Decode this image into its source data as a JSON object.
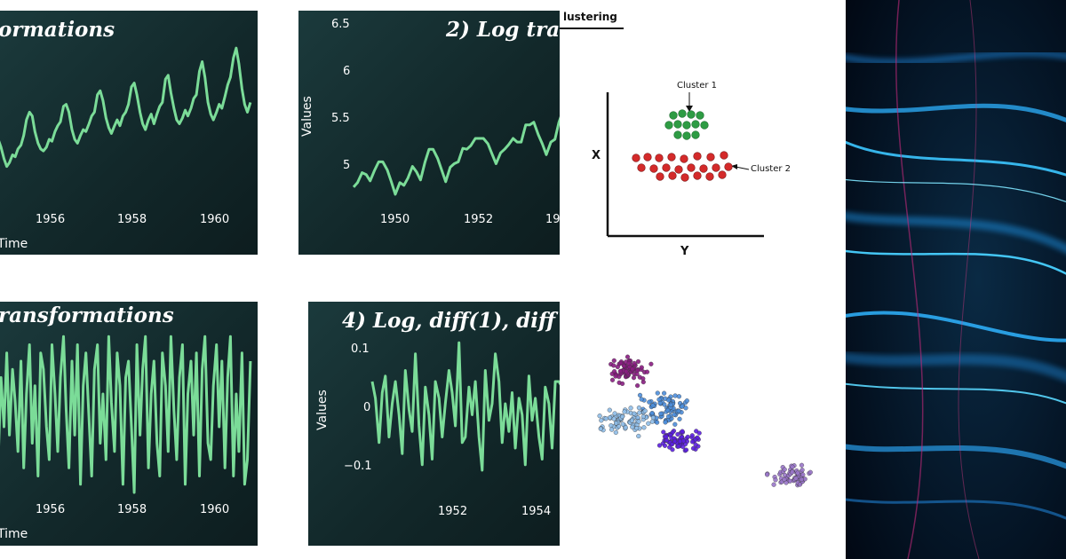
{
  "chart_data": [
    {
      "type": "line",
      "title": "ormations",
      "xlabel": "Time",
      "ylabel": "",
      "x_ticks": [
        "1956",
        "1958",
        "1960"
      ],
      "x_range": [
        1953.5,
        1961.0
      ],
      "y_range": [
        -100,
        300
      ],
      "series": [
        {
          "x": [
            1953.5,
            1953.58,
            1953.67,
            1953.75,
            1953.83,
            1953.92,
            1954.0,
            1954.08,
            1954.17,
            1954.25,
            1954.33,
            1954.42,
            1954.5,
            1954.58,
            1954.67,
            1954.75,
            1954.83,
            1954.92,
            1955.0,
            1955.08,
            1955.17,
            1955.25,
            1955.33,
            1955.42,
            1955.5,
            1955.58,
            1955.67,
            1955.75,
            1955.83,
            1955.92,
            1956.0,
            1956.08,
            1956.17,
            1956.25,
            1956.33,
            1956.42,
            1956.5,
            1956.58,
            1956.67,
            1956.75,
            1956.83,
            1956.92,
            1957.0,
            1957.08,
            1957.17,
            1957.25,
            1957.33,
            1957.42,
            1957.5,
            1957.58,
            1957.67,
            1957.75,
            1957.83,
            1957.92,
            1958.0,
            1958.08,
            1958.17,
            1958.25,
            1958.33,
            1958.42,
            1958.5,
            1958.58,
            1958.67,
            1958.75,
            1958.83,
            1958.92,
            1959.0,
            1959.08,
            1959.17,
            1959.25,
            1959.33,
            1959.42,
            1959.5,
            1959.58,
            1959.67,
            1959.75,
            1959.83,
            1959.92,
            1960.0,
            1960.08,
            1960.17,
            1960.25,
            1960.33,
            1960.42,
            1960.5,
            1960.58,
            1960.67,
            1960.75,
            1960.83,
            1960.92
          ],
          "values": [
            60,
            40,
            10,
            -10,
            0,
            20,
            15,
            35,
            45,
            70,
            110,
            130,
            120,
            80,
            50,
            35,
            30,
            40,
            60,
            55,
            80,
            95,
            105,
            145,
            150,
            130,
            85,
            60,
            50,
            70,
            85,
            80,
            100,
            120,
            130,
            175,
            185,
            160,
            115,
            90,
            75,
            95,
            110,
            95,
            120,
            130,
            150,
            195,
            205,
            175,
            130,
            100,
            85,
            110,
            125,
            100,
            125,
            145,
            155,
            215,
            225,
            180,
            140,
            110,
            100,
            115,
            135,
            120,
            140,
            165,
            175,
            235,
            260,
            220,
            155,
            125,
            110,
            130,
            150,
            140,
            170,
            200,
            220,
            270,
            295,
            255,
            190,
            150,
            130,
            155
          ]
        }
      ]
    },
    {
      "type": "line",
      "title": "2) Log tra",
      "xlabel": "",
      "ylabel": "Values",
      "x_ticks": [
        "1950",
        "1952",
        "19"
      ],
      "y_ticks": [
        "6.5",
        "6",
        "5.5",
        "5"
      ],
      "x_range": [
        1949.0,
        1953.2
      ],
      "y_range": [
        4.65,
        6.5
      ],
      "series": [
        {
          "x": [
            1949.0,
            1949.08,
            1949.17,
            1949.25,
            1949.33,
            1949.42,
            1949.5,
            1949.58,
            1949.67,
            1949.75,
            1949.83,
            1949.92,
            1950.0,
            1950.08,
            1950.17,
            1950.25,
            1950.33,
            1950.42,
            1950.5,
            1950.58,
            1950.67,
            1950.75,
            1950.83,
            1950.92,
            1951.0,
            1951.08,
            1951.17,
            1951.25,
            1951.33,
            1951.42,
            1951.5,
            1951.58,
            1951.67,
            1951.75,
            1951.83,
            1951.92,
            1952.0,
            1952.08,
            1952.17,
            1952.25,
            1952.33,
            1952.42,
            1952.5,
            1952.58,
            1952.67,
            1952.75,
            1952.83,
            1952.92,
            1953.0,
            1953.08,
            1953.17,
            1953.2
          ],
          "values": [
            4.72,
            4.77,
            4.88,
            4.86,
            4.79,
            4.91,
            5.0,
            5.0,
            4.91,
            4.78,
            4.64,
            4.77,
            4.74,
            4.82,
            4.95,
            4.89,
            4.8,
            5.0,
            5.14,
            5.14,
            5.04,
            4.91,
            4.78,
            4.94,
            4.98,
            5.0,
            5.15,
            5.14,
            5.18,
            5.26,
            5.26,
            5.26,
            5.2,
            5.09,
            4.98,
            5.1,
            5.14,
            5.19,
            5.26,
            5.22,
            5.22,
            5.41,
            5.41,
            5.44,
            5.3,
            5.2,
            5.08,
            5.22,
            5.25,
            5.44,
            5.58,
            5.46
          ]
        }
      ]
    },
    {
      "type": "line",
      "title": "ransformations",
      "xlabel": "Time",
      "ylabel": "",
      "x_ticks": [
        "1956",
        "1958",
        "1960"
      ],
      "x_range": [
        1953.5,
        1961.0
      ],
      "y_range": [
        -1,
        1
      ],
      "series": [
        {
          "x": [
            1953.5,
            1953.58,
            1953.67,
            1953.75,
            1953.83,
            1953.92,
            1954.0,
            1954.08,
            1954.17,
            1954.25,
            1954.33,
            1954.42,
            1954.5,
            1954.58,
            1954.67,
            1954.75,
            1954.83,
            1954.92,
            1955.0,
            1955.08,
            1955.17,
            1955.25,
            1955.33,
            1955.42,
            1955.5,
            1955.58,
            1955.67,
            1955.75,
            1955.83,
            1955.92,
            1956.0,
            1956.08,
            1956.17,
            1956.25,
            1956.33,
            1956.42,
            1956.5,
            1956.58,
            1956.67,
            1956.75,
            1956.83,
            1956.92,
            1957.0,
            1957.08,
            1957.17,
            1957.25,
            1957.33,
            1957.42,
            1957.5,
            1957.58,
            1957.67,
            1957.75,
            1957.83,
            1957.92,
            1958.0,
            1958.08,
            1958.17,
            1958.25,
            1958.33,
            1958.42,
            1958.5,
            1958.58,
            1958.67,
            1958.75,
            1958.83,
            1958.92,
            1959.0,
            1959.08,
            1959.17,
            1959.25,
            1959.33,
            1959.42,
            1959.5,
            1959.58,
            1959.67,
            1959.75,
            1959.83,
            1959.92,
            1960.0,
            1960.08,
            1960.17,
            1960.25,
            1960.33,
            1960.42,
            1960.5,
            1960.58,
            1960.67,
            1960.75,
            1960.83,
            1960.92
          ],
          "values": [
            -0.6,
            0.4,
            -0.2,
            0.7,
            -0.3,
            0.5,
            0.1,
            -0.5,
            0.6,
            -0.7,
            0.2,
            0.8,
            -0.4,
            0.3,
            -0.8,
            0.7,
            0.5,
            -0.2,
            -0.6,
            0.8,
            0.2,
            -0.5,
            0.4,
            0.9,
            0.0,
            -0.7,
            0.6,
            -0.3,
            0.8,
            -0.9,
            0.3,
            0.7,
            -0.1,
            -0.8,
            0.5,
            0.8,
            -0.4,
            0.2,
            -0.6,
            0.9,
            0.1,
            -0.5,
            0.7,
            0.3,
            -0.9,
            0.4,
            0.6,
            -0.2,
            -1.0,
            0.8,
            -0.3,
            0.5,
            0.9,
            -0.7,
            0.2,
            0.6,
            -0.4,
            -0.8,
            0.7,
            0.3,
            -0.5,
            0.9,
            0.0,
            -0.6,
            0.4,
            0.8,
            -0.9,
            0.2,
            0.6,
            -0.3,
            0.7,
            -0.8,
            0.5,
            0.9,
            -0.4,
            -0.6,
            0.3,
            0.8,
            -0.2,
            0.6,
            -0.7,
            0.4,
            0.9,
            -0.8,
            0.2,
            -0.5,
            0.7,
            -0.9,
            -0.6,
            0.6
          ]
        }
      ]
    },
    {
      "type": "line",
      "title": "4) Log, diff(1), diff",
      "xlabel": "",
      "ylabel": "Values",
      "x_ticks": [
        "1952",
        "1954"
      ],
      "y_ticks": [
        "0.1",
        "0",
        "−0.1"
      ],
      "x_range": [
        1950.0,
        1954.8
      ],
      "y_range": [
        -0.14,
        0.14
      ],
      "series": [
        {
          "x": [
            1950.0,
            1950.08,
            1950.17,
            1950.25,
            1950.33,
            1950.42,
            1950.5,
            1950.58,
            1950.67,
            1950.75,
            1950.83,
            1950.92,
            1951.0,
            1951.08,
            1951.17,
            1951.25,
            1951.33,
            1951.42,
            1951.5,
            1951.58,
            1951.67,
            1951.75,
            1951.83,
            1951.92,
            1952.0,
            1952.08,
            1952.17,
            1952.25,
            1952.33,
            1952.42,
            1952.5,
            1952.58,
            1952.67,
            1952.75,
            1952.83,
            1952.92,
            1953.0,
            1953.08,
            1953.17,
            1953.25,
            1953.33,
            1953.42,
            1953.5,
            1953.58,
            1953.67,
            1953.75,
            1953.83,
            1953.92,
            1954.0,
            1954.08,
            1954.17,
            1954.25,
            1954.33,
            1954.42,
            1954.5,
            1954.58,
            1954.67,
            1954.75
          ],
          "values": [
            0.06,
            0.03,
            -0.05,
            0.04,
            0.07,
            -0.04,
            0.02,
            0.06,
            0.0,
            -0.07,
            0.08,
            0.01,
            -0.03,
            0.11,
            -0.02,
            -0.09,
            0.05,
            0.0,
            -0.08,
            0.06,
            0.03,
            -0.04,
            0.02,
            0.08,
            0.04,
            -0.02,
            0.13,
            -0.05,
            -0.04,
            0.05,
            0.0,
            0.06,
            -0.04,
            -0.1,
            0.08,
            -0.01,
            0.02,
            0.11,
            0.06,
            -0.05,
            0.02,
            -0.03,
            0.04,
            -0.06,
            0.03,
            0.0,
            -0.09,
            0.07,
            -0.01,
            0.03,
            -0.04,
            -0.08,
            0.05,
            0.02,
            -0.06,
            0.06,
            0.06,
            0.05
          ]
        }
      ]
    }
  ],
  "clustering": {
    "title": "lustering",
    "cluster1_label": "Cluster 1",
    "cluster2_label": "Cluster 2",
    "x_axis_label": "X",
    "y_axis_label": "Y",
    "cluster1_color": "#2e9c44",
    "cluster2_color": "#d42a2a",
    "blob_colors": [
      "#8a1c82",
      "#4d8fdc",
      "#8fbde8",
      "#5b1ee0",
      "#9a76c9"
    ]
  },
  "colors": {
    "line": "#7bdc98",
    "panel_bg": "#163032",
    "text": "#ffffff"
  },
  "background_image": "blue-light-swirl"
}
